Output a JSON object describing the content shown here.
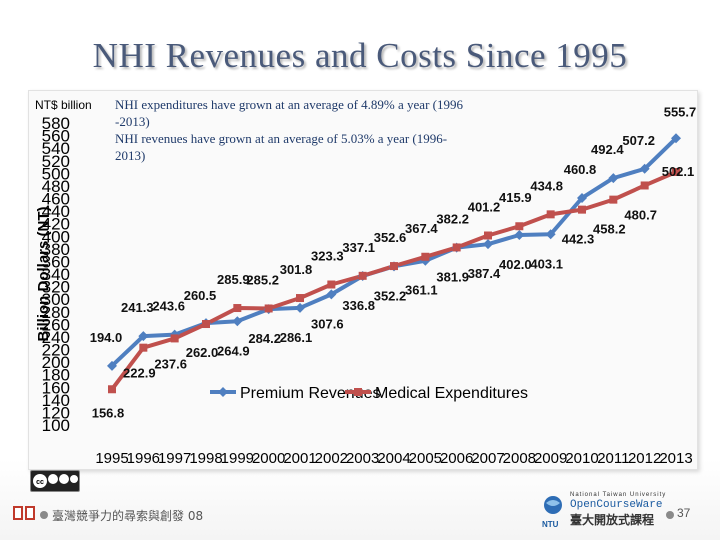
{
  "slide": {
    "title": "NHI Revenues and Costs Since 1995",
    "unit_label": "NT$ billion",
    "notes": [
      "NHI expenditures have grown at an average of 4.89% a year (1996",
      "-2013)",
      "NHI  revenues have grown at an average of 5.03% a year (1996-",
      "2013)"
    ],
    "footer_text": "臺灣競爭力的尋索與創發 08",
    "page_number": "37",
    "ocw": {
      "line1": "National Taiwan University",
      "line2": "OpenCourseWare",
      "line3": "臺大開放式課程",
      "short": "NTU"
    },
    "cc_badge": "cc by nc nd"
  },
  "chart_data": {
    "type": "line",
    "ylabel": "Billion Dollars (NT)",
    "xlabel": "",
    "ylim": [
      100,
      580
    ],
    "yticks": [
      100,
      120,
      140,
      160,
      180,
      200,
      220,
      240,
      260,
      280,
      300,
      320,
      340,
      360,
      380,
      400,
      420,
      440,
      460,
      480,
      500,
      520,
      540,
      560,
      580
    ],
    "categories": [
      "1995",
      "1996",
      "1997",
      "1998",
      "1999",
      "2000",
      "2001",
      "2002",
      "2003",
      "2004",
      "2005",
      "2006",
      "2007",
      "2008",
      "2009",
      "2010",
      "2011",
      "2012",
      "2013"
    ],
    "legend_position": "bottom-center",
    "series": [
      {
        "name": "Premium Revenues",
        "color": "#4f7fc0",
        "values": [
          194.0,
          241.3,
          243.6,
          262.0,
          264.9,
          284.2,
          286.1,
          307.6,
          336.8,
          352.2,
          361.1,
          381.9,
          387.4,
          402.0,
          403.1,
          460.8,
          492.4,
          507.2,
          555.7
        ]
      },
      {
        "name": "Medical Expenditures",
        "color": "#c0504d",
        "values": [
          156.8,
          222.9,
          237.6,
          260.5,
          285.9,
          285.2,
          301.8,
          323.3,
          337.1,
          352.6,
          367.4,
          382.2,
          401.2,
          415.9,
          434.8,
          442.3,
          458.2,
          480.7,
          502.1
        ]
      }
    ],
    "data_labels": [
      "194.0",
      "241.3",
      "243.6",
      "262.0",
      "264.9",
      "284.2",
      "286.1",
      "307.6",
      "336.8",
      "352.2",
      "361.1",
      "381.9",
      "387.4",
      "402.0",
      "403.1",
      "460.8",
      "492.4",
      "507.2",
      "555.7",
      "156.8",
      "222.9",
      "237.6",
      "260.5",
      "285.9",
      "285.2",
      "301.8",
      "323.3",
      "337.1",
      "352.6",
      "367.4",
      "382.2",
      "401.2",
      "415.9",
      "434.8",
      "442.3",
      "458.2",
      "480.7",
      "502.1"
    ]
  }
}
